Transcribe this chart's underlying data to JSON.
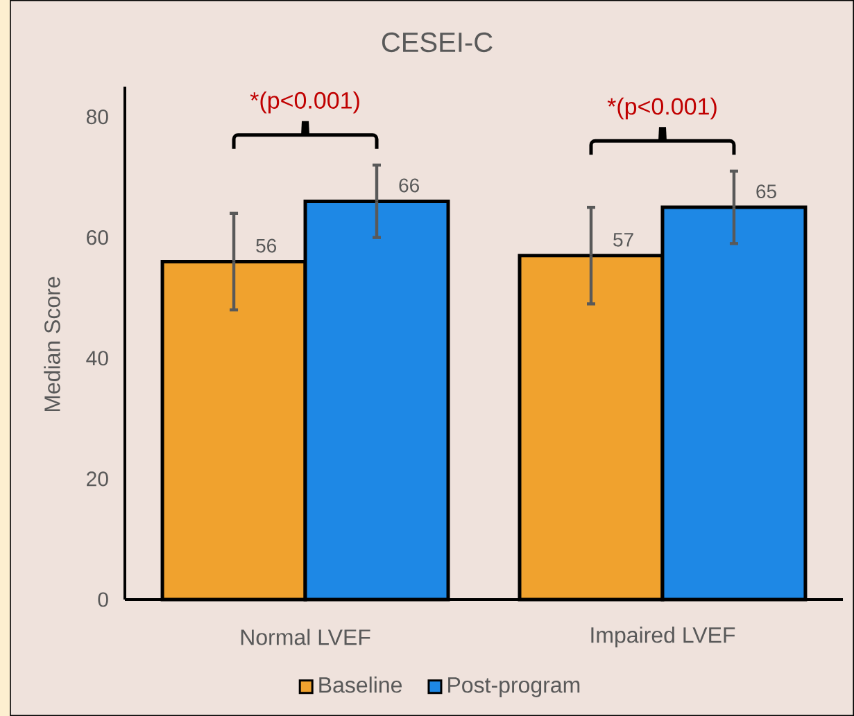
{
  "chart_data": {
    "type": "bar",
    "title": "CESEI-C",
    "ylabel": "Median Score",
    "categories": [
      "Normal LVEF",
      "Impaired LVEF"
    ],
    "series": [
      {
        "name": "Baseline",
        "color": "#f0a22e",
        "values": [
          56,
          57
        ],
        "errors": [
          [
            48,
            64
          ],
          [
            49,
            65
          ]
        ]
      },
      {
        "name": "Post-program",
        "color": "#1e88e5",
        "values": [
          66,
          65
        ],
        "errors": [
          [
            60,
            72
          ],
          [
            59,
            71
          ]
        ]
      }
    ],
    "ylim": [
      0,
      85
    ],
    "yticks": [
      0,
      20,
      40,
      60,
      80
    ],
    "grid": false,
    "legend": "bottom",
    "data_labels": true,
    "annotations": [
      "*(p<0.001)",
      "*(p<0.001)"
    ]
  }
}
